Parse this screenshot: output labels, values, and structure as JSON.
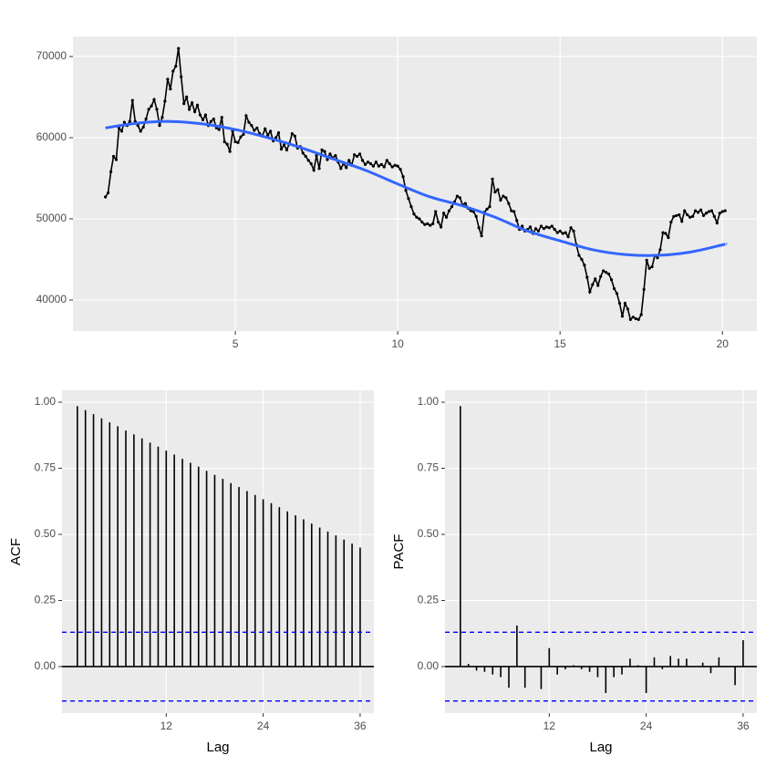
{
  "chart_data": [
    {
      "type": "line",
      "xlim": [
        0.0,
        21.06
      ],
      "ylim": [
        36180,
        72470
      ],
      "xticks": [
        5,
        10,
        15,
        20
      ],
      "yticks": [
        40000,
        50000,
        60000,
        70000
      ],
      "grid": true,
      "series": [
        {
          "color": "#000000",
          "markers": true,
          "x": [
            1,
            1.083,
            1.167,
            1.25,
            1.333,
            1.417,
            1.5,
            1.583,
            1.667,
            1.75,
            1.833,
            1.917,
            2,
            2.083,
            2.167,
            2.25,
            2.333,
            2.417,
            2.5,
            2.583,
            2.667,
            2.75,
            2.833,
            2.917,
            3,
            3.083,
            3.167,
            3.25,
            3.333,
            3.417,
            3.5,
            3.583,
            3.667,
            3.75,
            3.833,
            3.917,
            4,
            4.083,
            4.167,
            4.25,
            4.333,
            4.417,
            4.5,
            4.583,
            4.667,
            4.75,
            4.833,
            4.917,
            5,
            5.083,
            5.167,
            5.25,
            5.333,
            5.417,
            5.5,
            5.583,
            5.667,
            5.75,
            5.833,
            5.917,
            6,
            6.083,
            6.167,
            6.25,
            6.333,
            6.417,
            6.5,
            6.583,
            6.667,
            6.75,
            6.833,
            6.917,
            7,
            7.083,
            7.167,
            7.25,
            7.333,
            7.417,
            7.5,
            7.583,
            7.667,
            7.75,
            7.833,
            7.917,
            8,
            8.083,
            8.167,
            8.25,
            8.333,
            8.417,
            8.5,
            8.583,
            8.667,
            8.75,
            8.833,
            8.917,
            9,
            9.083,
            9.167,
            9.25,
            9.333,
            9.417,
            9.5,
            9.583,
            9.667,
            9.75,
            9.833,
            9.917,
            10,
            10.083,
            10.167,
            10.25,
            10.333,
            10.417,
            10.5,
            10.583,
            10.667,
            10.75,
            10.833,
            10.917,
            11,
            11.083,
            11.167,
            11.25,
            11.333,
            11.417,
            11.5,
            11.583,
            11.667,
            11.75,
            11.833,
            11.917,
            12,
            12.083,
            12.167,
            12.25,
            12.333,
            12.417,
            12.5,
            12.583,
            12.667,
            12.75,
            12.833,
            12.917,
            13,
            13.083,
            13.167,
            13.25,
            13.333,
            13.417,
            13.5,
            13.583,
            13.667,
            13.75,
            13.833,
            13.917,
            14,
            14.083,
            14.167,
            14.25,
            14.333,
            14.417,
            14.5,
            14.583,
            14.667,
            14.75,
            14.833,
            14.917,
            15,
            15.083,
            15.167,
            15.25,
            15.333,
            15.417,
            15.5,
            15.583,
            15.667,
            15.75,
            15.833,
            15.917,
            16,
            16.083,
            16.167,
            16.25,
            16.333,
            16.417,
            16.5,
            16.583,
            16.667,
            16.75,
            16.833,
            16.917,
            17,
            17.083,
            17.167,
            17.25,
            17.333,
            17.417,
            17.5,
            17.583,
            17.667,
            17.75,
            17.833,
            17.917,
            18,
            18.083,
            18.167,
            18.25,
            18.333,
            18.417,
            18.5,
            18.583,
            18.667,
            18.75,
            18.833,
            18.917,
            19,
            19.083,
            19.167,
            19.25,
            19.333,
            19.417,
            19.5,
            19.583,
            19.667,
            19.75,
            19.833,
            19.917,
            20,
            20.083
          ],
          "values": [
            52700,
            53200,
            55800,
            57700,
            57300,
            61200,
            60800,
            61900,
            61500,
            62000,
            64600,
            62000,
            61500,
            60800,
            61300,
            62300,
            63500,
            63900,
            64700,
            63500,
            61500,
            62500,
            64500,
            67200,
            66000,
            68200,
            68800,
            71000,
            67500,
            64200,
            65000,
            63500,
            64300,
            63200,
            64000,
            62800,
            62200,
            62800,
            61500,
            62000,
            62300,
            61200,
            61000,
            62500,
            59500,
            59200,
            58300,
            60800,
            59500,
            59400,
            60100,
            60400,
            62700,
            61900,
            61500,
            60900,
            61200,
            60500,
            60200,
            61100,
            60300,
            60800,
            59600,
            60000,
            60600,
            58600,
            59100,
            58500,
            59300,
            60500,
            60200,
            58700,
            58900,
            58100,
            57700,
            57200,
            56800,
            56000,
            57800,
            56200,
            58500,
            58300,
            57300,
            58000,
            57500,
            57800,
            57000,
            56200,
            56800,
            56300,
            57200,
            56600,
            57900,
            57700,
            58000,
            57200,
            56700,
            57000,
            56800,
            56500,
            57000,
            56500,
            56700,
            56400,
            57200,
            56800,
            56400,
            56600,
            56500,
            56100,
            55200,
            53500,
            52500,
            51500,
            50600,
            50200,
            50000,
            49600,
            49300,
            49400,
            49200,
            49400,
            50900,
            49600,
            49000,
            50700,
            50200,
            51000,
            51500,
            52100,
            52800,
            52600,
            51700,
            51900,
            51300,
            51000,
            50900,
            50300,
            48900,
            47900,
            50800,
            51200,
            51500,
            54900,
            53300,
            53600,
            52300,
            52800,
            52600,
            51900,
            51000,
            50900,
            49800,
            48700,
            49100,
            48500,
            48700,
            49000,
            48200,
            48800,
            48500,
            49100,
            48800,
            49000,
            48900,
            49100,
            48700,
            48300,
            48500,
            48200,
            48300,
            47800,
            48900,
            48500,
            46800,
            45500,
            45000,
            44300,
            42800,
            41000,
            41900,
            42600,
            41800,
            42900,
            43600,
            43400,
            43200,
            42500,
            41400,
            40800,
            39600,
            38000,
            39600,
            38900,
            37600,
            37900,
            37700,
            37600,
            38200,
            41300,
            44900,
            43900,
            44100,
            45500,
            45200,
            46200,
            48300,
            48200,
            47700,
            49600,
            50300,
            50400,
            50500,
            49700,
            51000,
            50500,
            50200,
            50300,
            51000,
            50800,
            51100,
            50400,
            50700,
            50900,
            51000,
            50300,
            49500,
            50700,
            50900,
            51000
          ]
        },
        {
          "color": "#3366FF",
          "smooth": true,
          "x": [
            1,
            2,
            3,
            4,
            5,
            6,
            7,
            8,
            9,
            10,
            11,
            12,
            13,
            14,
            15,
            16,
            17,
            18,
            19,
            20,
            20.083
          ],
          "values": [
            61200,
            61800,
            62000,
            61700,
            61000,
            60000,
            58800,
            57400,
            56000,
            54300,
            52700,
            51600,
            50200,
            48500,
            47300,
            46200,
            45600,
            45500,
            45900,
            46800,
            46900
          ]
        }
      ]
    },
    {
      "type": "acf",
      "xlabel": "Lag",
      "ylabel": "ACF",
      "xlim": [
        -0.9,
        37.7
      ],
      "ylim": [
        -0.176,
        1.045
      ],
      "xticks": [
        12,
        24,
        36
      ],
      "yticks": [
        {
          "value": 0,
          "label": "0.00"
        },
        {
          "value": 0.25,
          "label": "0.25"
        },
        {
          "value": 0.5,
          "label": "0.50"
        },
        {
          "value": 0.75,
          "label": "0.75"
        },
        {
          "value": 1,
          "label": "1.00"
        }
      ],
      "grid": true,
      "color": "#000000",
      "conf_color": "#0000FF",
      "conf_limits": [
        0.13,
        -0.13
      ],
      "x": [
        1,
        2,
        3,
        4,
        5,
        6,
        7,
        8,
        9,
        10,
        11,
        12,
        13,
        14,
        15,
        16,
        17,
        18,
        19,
        20,
        21,
        22,
        23,
        24,
        25,
        26,
        27,
        28,
        29,
        30,
        31,
        32,
        33,
        34,
        35,
        36
      ],
      "values": [
        0.985,
        0.97,
        0.955,
        0.939,
        0.924,
        0.909,
        0.893,
        0.878,
        0.863,
        0.847,
        0.832,
        0.817,
        0.802,
        0.786,
        0.771,
        0.756,
        0.74,
        0.725,
        0.71,
        0.694,
        0.679,
        0.664,
        0.649,
        0.633,
        0.618,
        0.603,
        0.587,
        0.572,
        0.557,
        0.541,
        0.526,
        0.511,
        0.496,
        0.48,
        0.465,
        0.45
      ]
    },
    {
      "type": "acf",
      "xlabel": "Lag",
      "ylabel": "PACF",
      "xlim": [
        -0.9,
        37.7
      ],
      "ylim": [
        -0.176,
        1.045
      ],
      "xticks": [
        12,
        24,
        36
      ],
      "yticks": [
        {
          "value": 0,
          "label": "0.00"
        },
        {
          "value": 0.25,
          "label": "0.25"
        },
        {
          "value": 0.5,
          "label": "0.50"
        },
        {
          "value": 0.75,
          "label": "0.75"
        },
        {
          "value": 1,
          "label": "1.00"
        }
      ],
      "grid": true,
      "color": "#000000",
      "conf_color": "#0000FF",
      "conf_limits": [
        0.13,
        -0.13
      ],
      "x": [
        1,
        2,
        3,
        4,
        5,
        6,
        7,
        8,
        9,
        10,
        11,
        12,
        13,
        14,
        15,
        16,
        17,
        18,
        19,
        20,
        21,
        22,
        23,
        24,
        25,
        26,
        27,
        28,
        29,
        30,
        31,
        32,
        33,
        34,
        35,
        36
      ],
      "values": [
        0.985,
        0.01,
        -0.015,
        -0.02,
        -0.03,
        -0.04,
        -0.08,
        0.155,
        -0.08,
        0.0,
        -0.085,
        0.07,
        -0.03,
        -0.01,
        0.005,
        -0.01,
        -0.02,
        -0.04,
        -0.1,
        -0.04,
        -0.03,
        0.03,
        0.005,
        -0.1,
        0.035,
        -0.01,
        0.04,
        0.03,
        0.03,
        0.0,
        0.015,
        -0.025,
        0.035,
        0.0,
        -0.07,
        0.1
      ]
    }
  ]
}
